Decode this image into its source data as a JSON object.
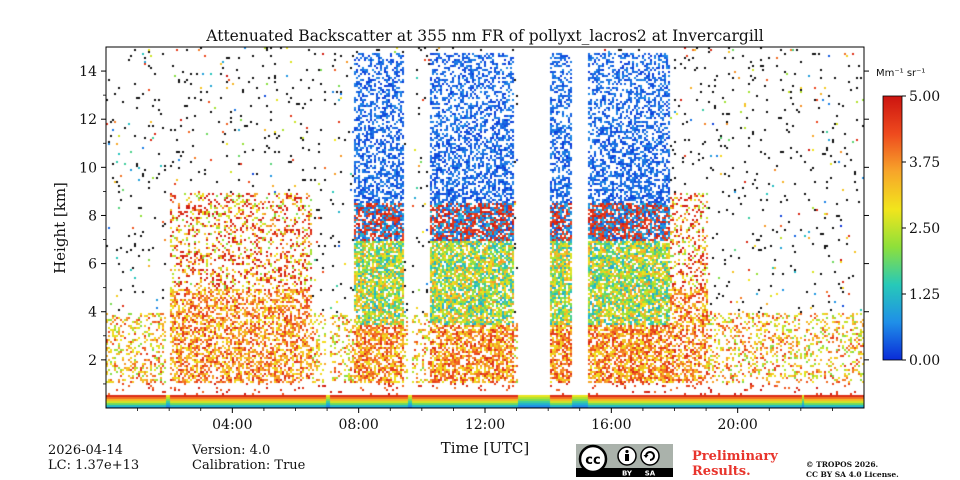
{
  "chart_data": {
    "type": "heatmap",
    "title": "Attenuated Backscatter at 355 nm FR of pollyxt_lacros2 at Invercargill",
    "xlabel": "Time [UTC]",
    "ylabel": "Height [km]",
    "x_range_hours": [
      0,
      24
    ],
    "x_ticks": [
      4,
      8,
      12,
      16,
      20
    ],
    "x_tick_labels": [
      "04:00",
      "08:00",
      "12:00",
      "16:00",
      "20:00"
    ],
    "y_range": [
      0,
      15
    ],
    "y_ticks": [
      2,
      4,
      6,
      8,
      10,
      12,
      14
    ],
    "y_tick_labels": [
      "2",
      "4",
      "6",
      "8",
      "10",
      "12",
      "14"
    ],
    "colorbar": {
      "unit": "Mm⁻¹ sr⁻¹",
      "range": [
        0.0,
        5.0
      ],
      "ticks": [
        0.0,
        1.25,
        2.5,
        3.75,
        5.0
      ],
      "tick_labels": [
        "0.00",
        "1.25",
        "2.50",
        "3.75",
        "5.00"
      ],
      "colormap": [
        "#0a2bd8",
        "#1f8fe8",
        "#27c9b8",
        "#8ee03a",
        "#f2e51c",
        "#f7a52a",
        "#ee4a1e",
        "#cc1410"
      ]
    },
    "gaps_hours": [
      [
        1.85,
        2.0
      ],
      [
        6.95,
        7.05
      ],
      [
        9.55,
        9.65
      ],
      [
        13.0,
        14.05
      ],
      [
        14.75,
        15.2
      ],
      [
        22.0,
        22.1
      ]
    ]
  },
  "footer": {
    "date": "2026-04-14",
    "lc": "LC: 1.37e+13",
    "version": "Version: 4.0",
    "calibration": "Calibration: True",
    "preliminary_line1": "Preliminary",
    "preliminary_line2": "Results.",
    "copyright_line1": "© TROPOS 2026.",
    "copyright_line2": "CC BY SA 4.0 License.",
    "badge_text": [
      "cc",
      "BY",
      "SA"
    ]
  }
}
